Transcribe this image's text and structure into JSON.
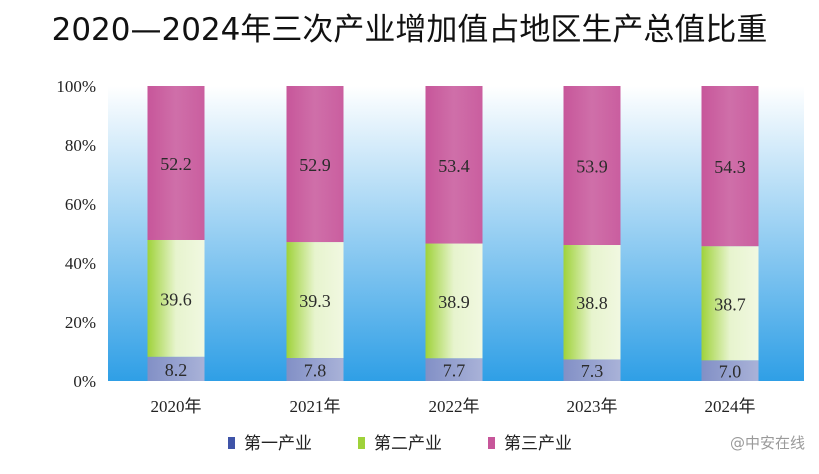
{
  "title": "2020—2024年三次产业增加值占地区生产总值比重",
  "watermark": "@中安在线",
  "colors": {
    "primary": "#3f54a8",
    "secondary": "#9fd23a",
    "tertiary": "#c7569a",
    "bg_top": "#ffffff",
    "bg_bottom": "#2f9fe6"
  },
  "chart_data": {
    "type": "bar",
    "stacked": true,
    "normalized": true,
    "categories": [
      "2020年",
      "2021年",
      "2022年",
      "2023年",
      "2024年"
    ],
    "series": [
      {
        "name": "第一产业",
        "values": [
          8.2,
          7.8,
          7.7,
          7.3,
          7.0
        ],
        "labels": [
          "8.2",
          "7.8",
          "7.7",
          "7.3",
          "7.0"
        ]
      },
      {
        "name": "第二产业",
        "values": [
          39.6,
          39.3,
          38.9,
          38.8,
          38.7
        ],
        "labels": [
          "39.6",
          "39.3",
          "38.9",
          "38.8",
          "38.7"
        ]
      },
      {
        "name": "第三产业",
        "values": [
          52.2,
          52.9,
          53.4,
          53.9,
          54.3
        ],
        "labels": [
          "52.2",
          "52.9",
          "53.4",
          "53.9",
          "54.3"
        ]
      }
    ],
    "yticks": [
      "0%",
      "20%",
      "40%",
      "60%",
      "80%",
      "100%"
    ],
    "ylim": [
      0,
      100
    ],
    "grid": false,
    "legend": "bottom"
  }
}
